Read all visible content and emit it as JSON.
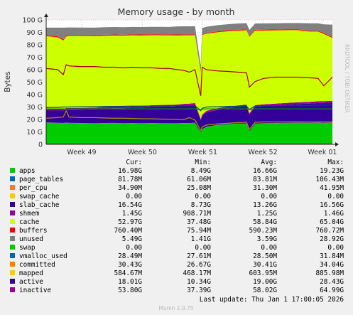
{
  "chart_data": {
    "type": "area",
    "title": "Memory usage - by month",
    "ylabel": "Bytes",
    "side_label": "RRDTOOL / TOBI OETIKER",
    "ylim": [
      0,
      100
    ],
    "y_unit": "G",
    "y_ticks": [
      {
        "v": 0,
        "label": "0"
      },
      {
        "v": 10,
        "label": "10 G"
      },
      {
        "v": 20,
        "label": "20 G"
      },
      {
        "v": 30,
        "label": "30 G"
      },
      {
        "v": 40,
        "label": "40 G"
      },
      {
        "v": 50,
        "label": "50 G"
      },
      {
        "v": 60,
        "label": "60 G"
      },
      {
        "v": 70,
        "label": "70 G"
      },
      {
        "v": 80,
        "label": "80 G"
      },
      {
        "v": 90,
        "label": "90 G"
      },
      {
        "v": 100,
        "label": "100 G"
      }
    ],
    "x_ticks": [
      "Week 49",
      "Week 50",
      "Week 51",
      "Week 52",
      "Week 01"
    ],
    "x": [
      0,
      0.04,
      0.06,
      0.07,
      0.08,
      0.12,
      0.17,
      0.2,
      0.24,
      0.27,
      0.3,
      0.33,
      0.37,
      0.4,
      0.43,
      0.46,
      0.48,
      0.5,
      0.52,
      0.54,
      0.545,
      0.56,
      0.6,
      0.64,
      0.67,
      0.7,
      0.71,
      0.73,
      0.76,
      0.8,
      0.84,
      0.88,
      0.92,
      0.95,
      0.97,
      1.0
    ],
    "stack": [
      {
        "name": "apps",
        "color": "#00cc00",
        "values": [
          17.5,
          17.2,
          17.0,
          17.3,
          17.2,
          17.0,
          16.8,
          17.0,
          17.1,
          16.9,
          17.0,
          16.8,
          17.0,
          16.9,
          16.8,
          16.9,
          17.0,
          17.0,
          17.2,
          9.5,
          12,
          14,
          15.5,
          16.2,
          16.5,
          16.6,
          10.5,
          16.6,
          16.8,
          17.0,
          17.2,
          17.3,
          17.2,
          17.3,
          17.2,
          17.3
        ]
      },
      {
        "name": "page_tables",
        "color": "#0066b3",
        "values": [
          0.08,
          0.08,
          0.08,
          0.08,
          0.08,
          0.08,
          0.08,
          0.08,
          0.08,
          0.08,
          0.08,
          0.08,
          0.08,
          0.08,
          0.08,
          0.08,
          0.08,
          0.08,
          0.08,
          0.08,
          0.08,
          0.08,
          0.08,
          0.08,
          0.08,
          0.08,
          0.08,
          0.08,
          0.08,
          0.08,
          0.08,
          0.08,
          0.08,
          0.08,
          0.08,
          0.08
        ]
      },
      {
        "name": "per_cpu",
        "color": "#ff8000",
        "values": [
          0.03,
          0.03,
          0.03,
          0.03,
          0.03,
          0.03,
          0.03,
          0.03,
          0.03,
          0.03,
          0.03,
          0.03,
          0.03,
          0.03,
          0.03,
          0.03,
          0.03,
          0.03,
          0.03,
          0.03,
          0.03,
          0.03,
          0.03,
          0.03,
          0.03,
          0.03,
          0.03,
          0.03,
          0.03,
          0.03,
          0.03,
          0.03,
          0.03,
          0.03,
          0.03,
          0.03
        ]
      },
      {
        "name": "swap_cache",
        "color": "#ffcc00",
        "values": [
          0,
          0,
          0,
          0,
          0,
          0,
          0,
          0,
          0,
          0,
          0,
          0,
          0,
          0,
          0,
          0,
          0,
          0,
          0,
          0,
          0,
          0,
          0,
          0,
          0,
          0,
          0,
          0,
          0,
          0,
          0,
          0,
          0,
          0,
          0,
          0
        ]
      },
      {
        "name": "slab_cache",
        "color": "#330099",
        "values": [
          9.5,
          9.8,
          10.0,
          10.3,
          10.5,
          10.8,
          11.2,
          11.5,
          11.8,
          12.0,
          12.3,
          12.6,
          12.9,
          13.2,
          13.4,
          13.6,
          14.0,
          14.2,
          14.5,
          9.5,
          10.5,
          11.5,
          12.2,
          12.8,
          13.4,
          13.9,
          13.0,
          13.4,
          13.8,
          14.2,
          14.6,
          15.0,
          15.4,
          15.8,
          16.0,
          16.2
        ]
      },
      {
        "name": "shmem",
        "color": "#990099",
        "values": [
          1.4,
          1.4,
          1.4,
          1.4,
          1.4,
          1.4,
          1.4,
          1.4,
          1.4,
          1.4,
          1.4,
          1.4,
          1.4,
          1.4,
          1.4,
          1.4,
          1.4,
          1.4,
          1.4,
          1.3,
          1.3,
          1.3,
          1.3,
          1.3,
          1.3,
          1.3,
          1.3,
          1.4,
          1.4,
          1.4,
          1.4,
          1.4,
          1.4,
          1.4,
          1.4,
          1.4
        ]
      },
      {
        "name": "cache",
        "color": "#ccff00",
        "values": [
          58.5,
          57.5,
          55.0,
          57.5,
          58.0,
          57.8,
          57.5,
          57.3,
          57.1,
          57.0,
          56.8,
          56.6,
          56.3,
          56.1,
          55.9,
          55.5,
          55.1,
          54.9,
          54.5,
          37.5,
          64.0,
          62.0,
          61.0,
          60.5,
          60.1,
          59.8,
          61.5,
          59.9,
          59.4,
          58.9,
          58.5,
          58.0,
          56.5,
          56.0,
          54.0,
          50.5
        ]
      },
      {
        "name": "buffers",
        "color": "#ff0000",
        "values": [
          0.75,
          0.75,
          0.75,
          0.75,
          0.75,
          0.75,
          0.75,
          0.75,
          0.75,
          0.75,
          0.75,
          0.75,
          0.75,
          0.75,
          0.75,
          0.75,
          0.75,
          0.75,
          0.75,
          0.3,
          0.5,
          0.6,
          0.7,
          0.7,
          0.7,
          0.7,
          0.5,
          0.7,
          0.7,
          0.7,
          0.7,
          0.7,
          0.7,
          0.7,
          0.7,
          0.7
        ]
      },
      {
        "name": "unused",
        "color": "#808080",
        "values": [
          6.0,
          7.0,
          9.5,
          6.5,
          6.0,
          6.0,
          6.0,
          6.0,
          6.0,
          6.0,
          6.0,
          6.0,
          6.0,
          6.0,
          6.0,
          6.5,
          6.5,
          6.5,
          6.5,
          5.0,
          5.0,
          5.0,
          5.0,
          5.0,
          5.0,
          5.0,
          5.0,
          5.0,
          5.0,
          5.0,
          5.0,
          5.0,
          6.0,
          6.0,
          7.0,
          10.0
        ]
      }
    ],
    "lines": [
      {
        "name": "vmalloc_used",
        "color": "#008f00",
        "values": [
          28.5,
          28.5,
          28.5,
          28.5,
          28.5,
          28.5,
          28.5,
          28.5,
          28.5,
          28.5,
          28.5,
          28.5,
          28.5,
          28.5,
          28.5,
          28.5,
          28.5,
          28.5,
          28.5,
          27.8,
          28.3,
          28.5,
          28.5,
          28.5,
          28.5,
          28.5,
          28.0,
          28.5,
          28.5,
          28.5,
          28.5,
          28.5,
          28.5,
          28.5,
          28.5,
          28.5
        ]
      },
      {
        "name": "committed",
        "color": "#00487d",
        "values": [
          29.5,
          29.8,
          30.0,
          30.0,
          30.0,
          30.2,
          30.3,
          30.5,
          30.5,
          30.6,
          30.7,
          30.7,
          30.8,
          30.8,
          30.9,
          30.9,
          31.0,
          31.0,
          31.0,
          27.0,
          29.0,
          30.0,
          30.2,
          30.5,
          30.6,
          30.7,
          28.0,
          30.8,
          30.9,
          31.0,
          31.1,
          31.2,
          31.3,
          31.4,
          31.5,
          31.6
        ]
      },
      {
        "name": "mapped",
        "color": "#b35a00",
        "values": [
          0.6,
          0.6,
          0.6,
          0.6,
          0.6,
          0.6,
          0.6,
          0.6,
          0.6,
          0.6,
          0.6,
          0.6,
          0.6,
          0.6,
          0.6,
          0.6,
          0.6,
          0.6,
          0.6,
          0.5,
          0.6,
          0.6,
          0.6,
          0.6,
          0.6,
          0.6,
          0.5,
          0.6,
          0.6,
          0.6,
          0.6,
          0.6,
          0.6,
          0.6,
          0.6,
          0.6
        ]
      },
      {
        "name": "active",
        "color": "#b38f00",
        "values": [
          21.0,
          21.5,
          22.0,
          27.0,
          22.0,
          21.5,
          21.5,
          21.2,
          21.0,
          21.0,
          20.8,
          20.6,
          20.5,
          20.3,
          20.2,
          20.0,
          19.8,
          21.5,
          19.5,
          11.0,
          14.0,
          15.5,
          16.5,
          17.0,
          17.5,
          17.8,
          12.0,
          17.8,
          18.0,
          18.0,
          18.1,
          18.1,
          18.0,
          18.0,
          18.0,
          18.0
        ]
      },
      {
        "name": "inactive",
        "color": "#a90000",
        "values": [
          61.0,
          60.0,
          56.0,
          64.0,
          63.0,
          62.5,
          62.5,
          62.0,
          62.0,
          61.5,
          62.0,
          61.5,
          61.5,
          61.0,
          61.0,
          60.0,
          59.5,
          58.0,
          60.0,
          39.0,
          62.0,
          60.0,
          59.0,
          58.5,
          58.0,
          57.5,
          46.0,
          50.5,
          53.0,
          54.0,
          54.0,
          54.0,
          53.5,
          53.0,
          47.0,
          54.0
        ]
      }
    ],
    "legend_headers": [
      "Cur:",
      "Min:",
      "Avg:",
      "Max:"
    ],
    "legend": [
      {
        "name": "apps",
        "color": "#00cc00",
        "cur": "16.98G",
        "min": "8.49G",
        "avg": "16.66G",
        "max": "19.23G"
      },
      {
        "name": "page_tables",
        "color": "#0066b3",
        "cur": "81.78M",
        "min": "61.06M",
        "avg": "83.81M",
        "max": "106.43M"
      },
      {
        "name": "per_cpu",
        "color": "#ff8000",
        "cur": "34.90M",
        "min": "25.08M",
        "avg": "31.30M",
        "max": "41.95M"
      },
      {
        "name": "swap_cache",
        "color": "#ffcc00",
        "cur": "0.00",
        "min": "0.00",
        "avg": "0.00",
        "max": "0.00"
      },
      {
        "name": "slab_cache",
        "color": "#330099",
        "cur": "16.54G",
        "min": "8.73G",
        "avg": "13.26G",
        "max": "16.56G"
      },
      {
        "name": "shmem",
        "color": "#990099",
        "cur": "1.45G",
        "min": "908.71M",
        "avg": "1.25G",
        "max": "1.46G"
      },
      {
        "name": "cache",
        "color": "#ccff00",
        "cur": "52.97G",
        "min": "37.48G",
        "avg": "58.84G",
        "max": "65.04G"
      },
      {
        "name": "buffers",
        "color": "#ff0000",
        "cur": "760.40M",
        "min": "75.94M",
        "avg": "590.23M",
        "max": "760.72M"
      },
      {
        "name": "unused",
        "color": "#808080",
        "cur": "5.49G",
        "min": "1.41G",
        "avg": "3.59G",
        "max": "28.92G"
      },
      {
        "name": "swap",
        "color": "#00cc00",
        "cur": "0.00",
        "min": "0.00",
        "avg": "0.00",
        "max": "0.00"
      },
      {
        "name": "vmalloc_used",
        "color": "#0066b3",
        "cur": "28.49M",
        "min": "27.61M",
        "avg": "28.50M",
        "max": "31.84M"
      },
      {
        "name": "committed",
        "color": "#ff8000",
        "cur": "30.43G",
        "min": "26.67G",
        "avg": "30.41G",
        "max": "34.04G"
      },
      {
        "name": "mapped",
        "color": "#ffcc00",
        "cur": "584.67M",
        "min": "468.17M",
        "avg": "603.95M",
        "max": "885.98M"
      },
      {
        "name": "active",
        "color": "#330099",
        "cur": "18.01G",
        "min": "10.34G",
        "avg": "19.00G",
        "max": "28.43G"
      },
      {
        "name": "inactive",
        "color": "#990099",
        "cur": "53.80G",
        "min": "37.39G",
        "avg": "58.02G",
        "max": "64.99G"
      }
    ],
    "last_update": "Last update: Thu Jan  1 17:00:05 2026",
    "footer": "Munin 2.0.75"
  }
}
